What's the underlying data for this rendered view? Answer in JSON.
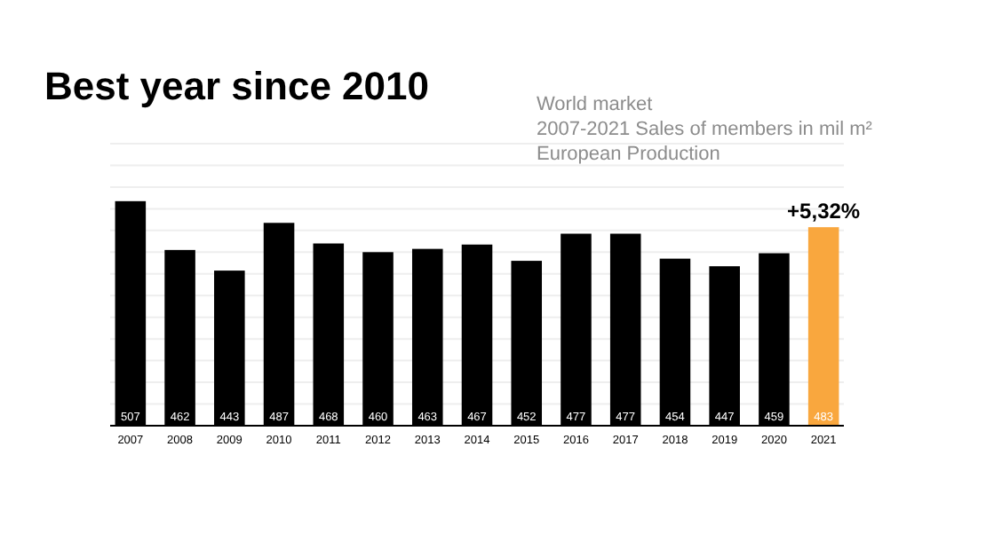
{
  "chart_data": {
    "type": "bar",
    "title": "Best year since 2010",
    "subtitle": "World market\n2007-2021 Sales of members in mil m²\nEuropean Production",
    "categories": [
      "2007",
      "2008",
      "2009",
      "2010",
      "2011",
      "2012",
      "2013",
      "2014",
      "2015",
      "2016",
      "2017",
      "2018",
      "2019",
      "2020",
      "2021"
    ],
    "values": [
      507,
      462,
      443,
      487,
      468,
      460,
      463,
      467,
      452,
      477,
      477,
      454,
      447,
      459,
      483
    ],
    "colors": [
      "#000000",
      "#000000",
      "#000000",
      "#000000",
      "#000000",
      "#000000",
      "#000000",
      "#000000",
      "#000000",
      "#000000",
      "#000000",
      "#000000",
      "#000000",
      "#000000",
      "#f9a73e"
    ],
    "data_labels": true,
    "annotations": [
      {
        "text": "+5,32%",
        "x": "2021",
        "y": 483
      }
    ],
    "ylim": [
      300,
      560
    ],
    "yticks": [
      {
        "value": 320,
        "label": null
      },
      {
        "value": 340,
        "label": null
      },
      {
        "value": 360,
        "label": null
      },
      {
        "value": 380,
        "label": null
      },
      {
        "value": 400,
        "label": null
      },
      {
        "value": 420,
        "label": null
      },
      {
        "value": 440,
        "label": null
      },
      {
        "value": 460,
        "label": null
      },
      {
        "value": 480,
        "label": null
      },
      {
        "value": 500,
        "label": null
      },
      {
        "value": 520,
        "label": null
      },
      {
        "value": 540,
        "label": null
      },
      {
        "value": 560,
        "label": null
      }
    ],
    "grid": "y",
    "tick_labels": "x"
  }
}
